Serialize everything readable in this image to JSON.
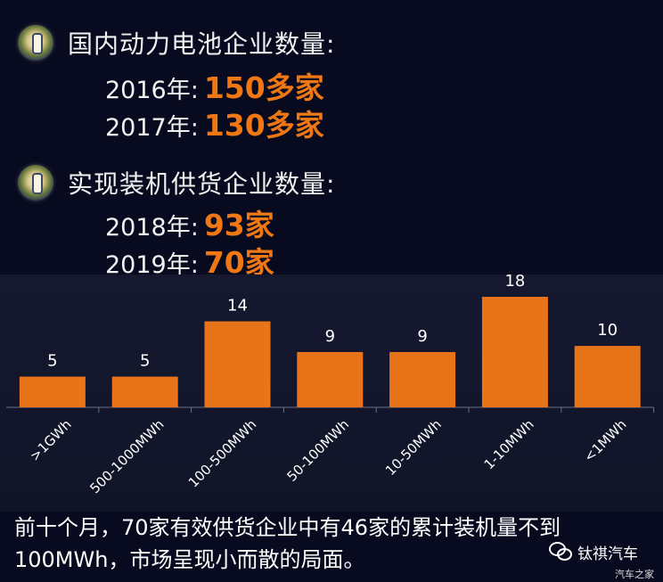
{
  "stats": {
    "domestic": {
      "heading": "国内动力电池企业数量:",
      "rows": [
        {
          "year": "2016年:",
          "value": "150多家"
        },
        {
          "year": "2017年:",
          "value": "130多家"
        }
      ]
    },
    "supply": {
      "heading": "实现装机供货企业数量:",
      "rows": [
        {
          "year": "2018年:",
          "value": "93家"
        },
        {
          "year": "2019年:",
          "value": "70家"
        }
      ]
    }
  },
  "chart_data": {
    "type": "bar",
    "categories": [
      ">1GWh",
      "500-1000MWh",
      "100-500MWh",
      "50-100MWh",
      "10-50MWh",
      "1-10MWh",
      "<1MWh"
    ],
    "values": [
      5,
      5,
      14,
      9,
      9,
      18,
      10
    ],
    "ylim": [
      0,
      18
    ],
    "bar_color": "#e8741a",
    "grid": false,
    "legend": "none"
  },
  "caption": {
    "line1": "前十个月，70家有效供货企业中有46家的累计装机量不到",
    "line2": "100MWh，市场呈现小而散的局面。"
  },
  "badge": {
    "label": "钛祺汽车",
    "icon": "wechat-icon"
  },
  "watermark": "汽车之家",
  "colors": {
    "background": "#080a1f",
    "accent": "#f07814"
  }
}
